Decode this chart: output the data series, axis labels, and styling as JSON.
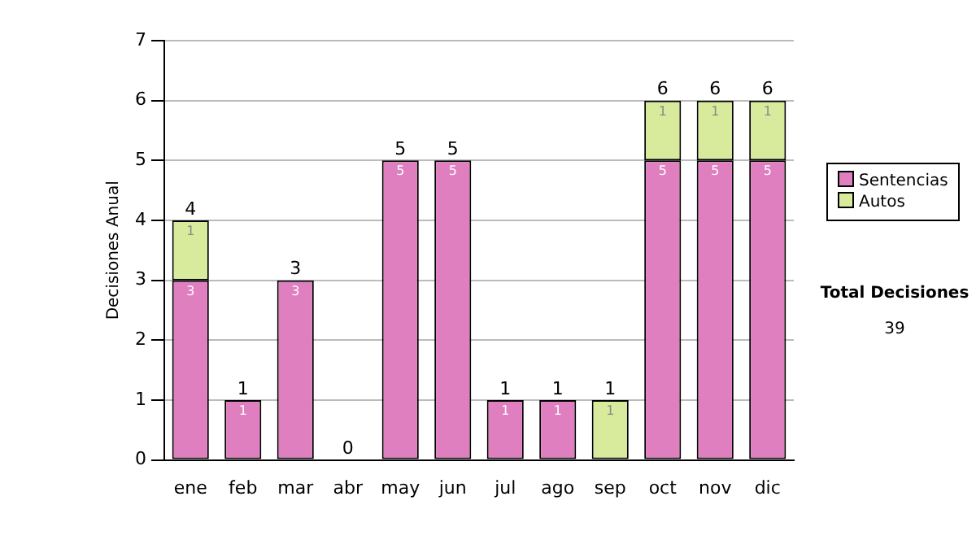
{
  "chart_data": {
    "type": "bar",
    "stacked": true,
    "ylabel": "Decisiones Anual",
    "categories": [
      "ene",
      "feb",
      "mar",
      "abr",
      "may",
      "jun",
      "jul",
      "ago",
      "sep",
      "oct",
      "nov",
      "dic"
    ],
    "series": [
      {
        "name": "Sentencias",
        "color": "#e07fc0",
        "values": [
          3,
          1,
          3,
          0,
          5,
          5,
          1,
          1,
          0,
          5,
          5,
          5
        ],
        "value_labels": [
          "3",
          "1",
          "3",
          null,
          "5",
          "5",
          "1",
          "1",
          null,
          "5",
          "5",
          "5"
        ]
      },
      {
        "name": "Autos",
        "color": "#d8eb9c",
        "values": [
          1,
          0,
          0,
          0,
          0,
          0,
          0,
          0,
          1,
          1,
          1,
          1
        ],
        "value_labels": [
          "1",
          null,
          null,
          null,
          null,
          null,
          null,
          null,
          "1",
          "1",
          "1",
          "1"
        ]
      }
    ],
    "totals": [
      "4",
      "1",
      "3",
      "0",
      "5",
      "5",
      "1",
      "1",
      "1",
      "6",
      "6",
      "6"
    ],
    "ylim": [
      0,
      7
    ],
    "yticks": [
      0,
      1,
      2,
      3,
      4,
      5,
      6,
      7
    ],
    "grid": "y",
    "legend": "right",
    "annotations": [
      "Total Decisiones",
      "39"
    ]
  }
}
